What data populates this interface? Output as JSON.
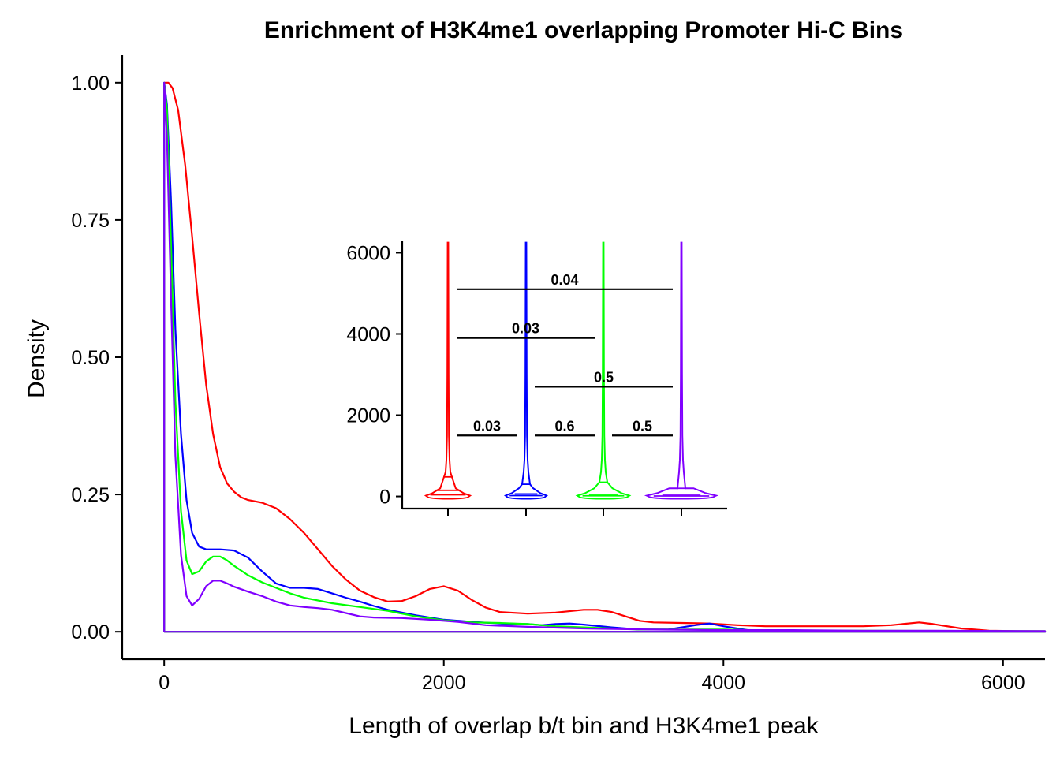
{
  "chart_data": [
    {
      "type": "line",
      "title": "Enrichment of H3K4me1 overlapping Promoter Hi-C Bins",
      "xlabel": "Length of overlap b/t bin and H3K4me1 peak",
      "ylabel": "Density",
      "xlim": [
        -300,
        6300
      ],
      "ylim": [
        -0.05,
        1.05
      ],
      "x_ticks": [
        "0",
        "2000",
        "4000",
        "6000"
      ],
      "x_tick_values": [
        0,
        2000,
        4000,
        6000
      ],
      "y_ticks": [
        "0.00",
        "0.25",
        "0.50",
        "0.75",
        "1.00"
      ],
      "y_tick_values": [
        0,
        0.25,
        0.5,
        0.75,
        1.0
      ],
      "grid": false,
      "legend": "none",
      "series": [
        {
          "color": "#ff0000",
          "points": [
            [
              0,
              0
            ],
            [
              0,
              1.0
            ],
            [
              30,
              1.0
            ],
            [
              60,
              0.99
            ],
            [
              100,
              0.95
            ],
            [
              150,
              0.85
            ],
            [
              200,
              0.72
            ],
            [
              250,
              0.58
            ],
            [
              300,
              0.45
            ],
            [
              350,
              0.36
            ],
            [
              400,
              0.3
            ],
            [
              450,
              0.27
            ],
            [
              500,
              0.255
            ],
            [
              550,
              0.245
            ],
            [
              600,
              0.24
            ],
            [
              700,
              0.235
            ],
            [
              800,
              0.225
            ],
            [
              900,
              0.205
            ],
            [
              1000,
              0.18
            ],
            [
              1100,
              0.15
            ],
            [
              1200,
              0.12
            ],
            [
              1300,
              0.095
            ],
            [
              1400,
              0.075
            ],
            [
              1500,
              0.063
            ],
            [
              1600,
              0.055
            ],
            [
              1700,
              0.056
            ],
            [
              1800,
              0.065
            ],
            [
              1900,
              0.078
            ],
            [
              2000,
              0.083
            ],
            [
              2100,
              0.075
            ],
            [
              2200,
              0.058
            ],
            [
              2300,
              0.044
            ],
            [
              2400,
              0.036
            ],
            [
              2600,
              0.033
            ],
            [
              2800,
              0.035
            ],
            [
              3000,
              0.04
            ],
            [
              3100,
              0.04
            ],
            [
              3200,
              0.036
            ],
            [
              3300,
              0.028
            ],
            [
              3400,
              0.02
            ],
            [
              3500,
              0.017
            ],
            [
              3700,
              0.016
            ],
            [
              3900,
              0.015
            ],
            [
              4100,
              0.012
            ],
            [
              4300,
              0.01
            ],
            [
              4600,
              0.01
            ],
            [
              5000,
              0.01
            ],
            [
              5200,
              0.012
            ],
            [
              5400,
              0.017
            ],
            [
              5500,
              0.014
            ],
            [
              5700,
              0.006
            ],
            [
              5900,
              0.002
            ],
            [
              6100,
              0.001
            ],
            [
              6300,
              0.001
            ]
          ]
        },
        {
          "color": "#0000ff",
          "points": [
            [
              0,
              0
            ],
            [
              0,
              1.0
            ],
            [
              20,
              0.96
            ],
            [
              50,
              0.78
            ],
            [
              80,
              0.55
            ],
            [
              120,
              0.36
            ],
            [
              160,
              0.24
            ],
            [
              200,
              0.18
            ],
            [
              250,
              0.155
            ],
            [
              300,
              0.15
            ],
            [
              400,
              0.15
            ],
            [
              500,
              0.148
            ],
            [
              600,
              0.135
            ],
            [
              700,
              0.11
            ],
            [
              800,
              0.088
            ],
            [
              900,
              0.08
            ],
            [
              1000,
              0.08
            ],
            [
              1100,
              0.078
            ],
            [
              1200,
              0.07
            ],
            [
              1300,
              0.062
            ],
            [
              1400,
              0.055
            ],
            [
              1500,
              0.047
            ],
            [
              1600,
              0.04
            ],
            [
              1700,
              0.035
            ],
            [
              1800,
              0.03
            ],
            [
              2000,
              0.022
            ],
            [
              2200,
              0.018
            ],
            [
              2400,
              0.015
            ],
            [
              2600,
              0.014
            ],
            [
              2700,
              0.012
            ],
            [
              2800,
              0.014
            ],
            [
              2900,
              0.015
            ],
            [
              3000,
              0.013
            ],
            [
              3200,
              0.008
            ],
            [
              3400,
              0.004
            ],
            [
              3600,
              0.004
            ],
            [
              3800,
              0.012
            ],
            [
              3900,
              0.015
            ],
            [
              4000,
              0.01
            ],
            [
              4200,
              0.002
            ],
            [
              4500,
              0.001
            ],
            [
              5000,
              0.001
            ],
            [
              6300,
              0.001
            ]
          ]
        },
        {
          "color": "#00ff00",
          "points": [
            [
              0,
              0
            ],
            [
              0,
              1.0
            ],
            [
              20,
              0.95
            ],
            [
              50,
              0.7
            ],
            [
              80,
              0.42
            ],
            [
              120,
              0.22
            ],
            [
              160,
              0.13
            ],
            [
              200,
              0.105
            ],
            [
              250,
              0.11
            ],
            [
              300,
              0.128
            ],
            [
              350,
              0.137
            ],
            [
              400,
              0.137
            ],
            [
              450,
              0.13
            ],
            [
              500,
              0.12
            ],
            [
              600,
              0.103
            ],
            [
              700,
              0.09
            ],
            [
              800,
              0.08
            ],
            [
              900,
              0.07
            ],
            [
              1000,
              0.062
            ],
            [
              1200,
              0.052
            ],
            [
              1400,
              0.045
            ],
            [
              1600,
              0.038
            ],
            [
              1800,
              0.028
            ],
            [
              2000,
              0.021
            ],
            [
              2200,
              0.017
            ],
            [
              2400,
              0.016
            ],
            [
              2600,
              0.014
            ],
            [
              2800,
              0.01
            ],
            [
              3000,
              0.008
            ],
            [
              3200,
              0.006
            ],
            [
              3400,
              0.004
            ],
            [
              3600,
              0.004
            ],
            [
              4000,
              0.004
            ],
            [
              4200,
              0.003
            ],
            [
              4600,
              0.002
            ],
            [
              5000,
              0.002
            ],
            [
              6300,
              0.001
            ]
          ]
        },
        {
          "color": "#8000ff",
          "points": [
            [
              0,
              0
            ],
            [
              0,
              1.0
            ],
            [
              20,
              0.9
            ],
            [
              50,
              0.6
            ],
            [
              80,
              0.32
            ],
            [
              120,
              0.14
            ],
            [
              160,
              0.065
            ],
            [
              200,
              0.048
            ],
            [
              250,
              0.06
            ],
            [
              300,
              0.083
            ],
            [
              350,
              0.093
            ],
            [
              400,
              0.093
            ],
            [
              450,
              0.088
            ],
            [
              500,
              0.082
            ],
            [
              600,
              0.073
            ],
            [
              700,
              0.065
            ],
            [
              800,
              0.055
            ],
            [
              900,
              0.048
            ],
            [
              1000,
              0.045
            ],
            [
              1100,
              0.043
            ],
            [
              1200,
              0.04
            ],
            [
              1300,
              0.034
            ],
            [
              1400,
              0.028
            ],
            [
              1500,
              0.026
            ],
            [
              1700,
              0.025
            ],
            [
              1900,
              0.022
            ],
            [
              2000,
              0.02
            ],
            [
              2100,
              0.018
            ],
            [
              2300,
              0.012
            ],
            [
              2600,
              0.009
            ],
            [
              3000,
              0.006
            ],
            [
              3500,
              0.004
            ],
            [
              4000,
              0.003
            ],
            [
              4500,
              0.003
            ],
            [
              5000,
              0.002
            ],
            [
              5500,
              0.002
            ],
            [
              6300,
              0.001
            ]
          ]
        }
      ]
    },
    {
      "type": "violin",
      "title": "",
      "ylim": [
        -300,
        6300
      ],
      "y_ticks": [
        "0",
        "2000",
        "4000",
        "6000"
      ],
      "y_tick_values": [
        0,
        2000,
        4000,
        6000
      ],
      "groups": [
        {
          "color": "#ff0000",
          "max": 6250,
          "median": 150,
          "quartile_low": 40,
          "quartile_high": 480
        },
        {
          "color": "#0000ff",
          "max": 6250,
          "median": 60,
          "quartile_low": 20,
          "quartile_high": 300
        },
        {
          "color": "#00ff00",
          "max": 6250,
          "median": 50,
          "quartile_low": 15,
          "quartile_high": 350
        },
        {
          "color": "#8000ff",
          "max": 6250,
          "median": 30,
          "quartile_low": 10,
          "quartile_high": 200
        }
      ],
      "comparisons": [
        {
          "from": 1,
          "to": 4,
          "y": 5100,
          "label": "0.04"
        },
        {
          "from": 1,
          "to": 3,
          "y": 3900,
          "label": "0.03"
        },
        {
          "from": 2,
          "to": 4,
          "y": 2700,
          "label": "0.5"
        },
        {
          "from": 1,
          "to": 2,
          "y": 1500,
          "label": "0.03"
        },
        {
          "from": 2,
          "to": 3,
          "y": 1500,
          "label": "0.6"
        },
        {
          "from": 3,
          "to": 4,
          "y": 1500,
          "label": "0.5"
        }
      ]
    }
  ]
}
